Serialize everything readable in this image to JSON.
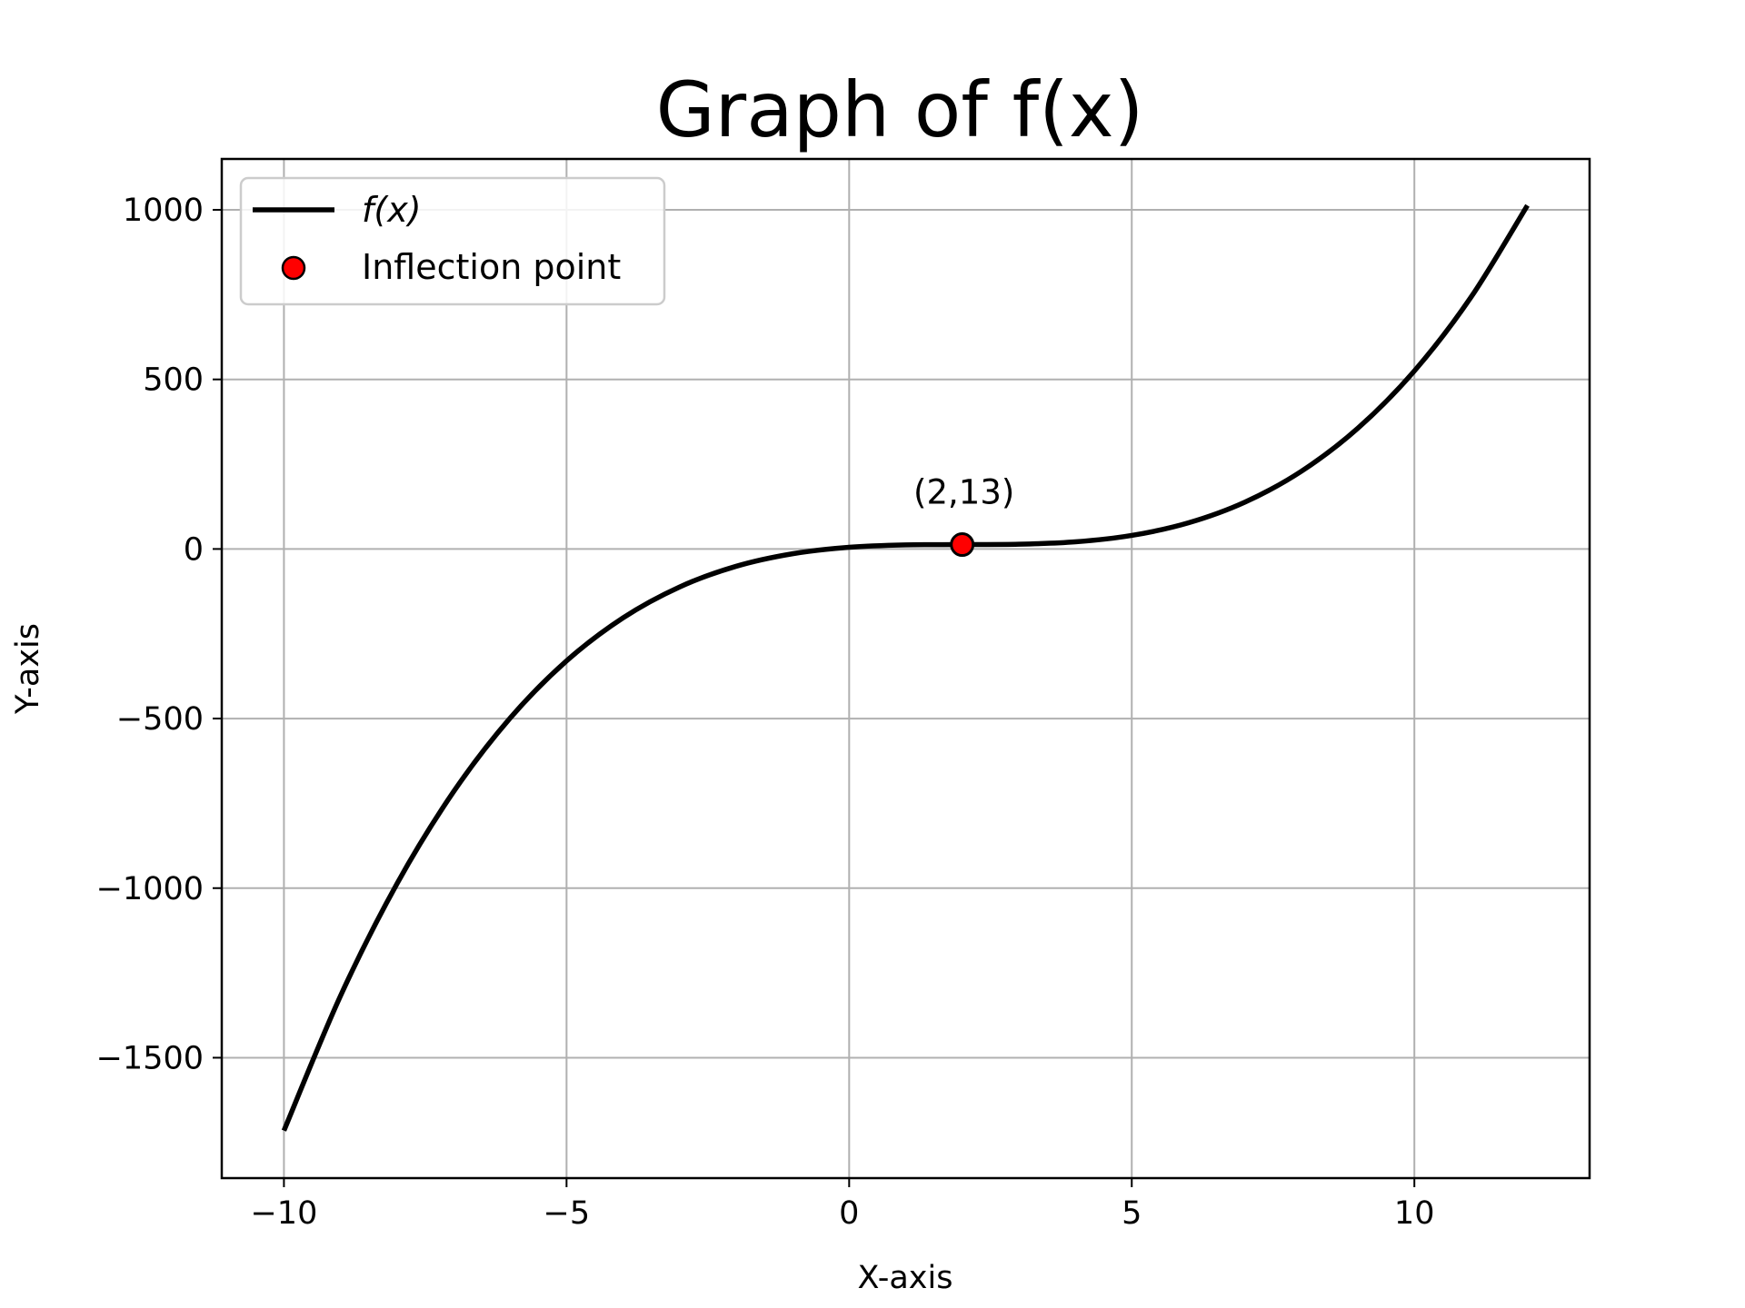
{
  "chart_data": {
    "type": "line",
    "title": "Graph of f(x)",
    "xlabel": "X-axis",
    "ylabel": "Y-axis",
    "xlim": [
      -11.1,
      13.1
    ],
    "ylim": [
      -1855,
      1150
    ],
    "grid": true,
    "legend_position": "top-left",
    "x_ticks": [
      -10,
      -5,
      0,
      5,
      10
    ],
    "x_tick_labels": [
      "−10",
      "−5",
      "0",
      "5",
      "10"
    ],
    "y_ticks": [
      -1500,
      -1000,
      -500,
      0,
      500,
      1000
    ],
    "y_tick_labels": [
      "−1500",
      "−1000",
      "−500",
      "0",
      "500",
      "1000"
    ],
    "series": [
      {
        "name": "f(x)",
        "color": "#000000",
        "x": [
          -10,
          -9,
          -8,
          -7,
          -6,
          -5,
          -4,
          -3,
          -2,
          -1,
          0,
          1,
          2,
          3,
          4,
          5,
          6,
          7,
          8,
          9,
          10,
          11,
          12
        ],
        "y": [
          -1715,
          -1318,
          -987,
          -716,
          -499,
          -330,
          -203,
          -112,
          -51,
          -14,
          5,
          12,
          13,
          14,
          21,
          40,
          77,
          138,
          229,
          356,
          525,
          742,
          1013
        ]
      }
    ],
    "inflection_point": {
      "name": "Inflection point",
      "x": 2,
      "y": 13,
      "label": "(2,13)",
      "color": "#ff0000"
    }
  },
  "legend": {
    "series_label": "f(x)",
    "point_label": "Inflection point"
  },
  "colors": {
    "grid": "#b0b0b0",
    "line": "#000000",
    "marker_fill": "#ff0000",
    "marker_edge": "#000000"
  }
}
